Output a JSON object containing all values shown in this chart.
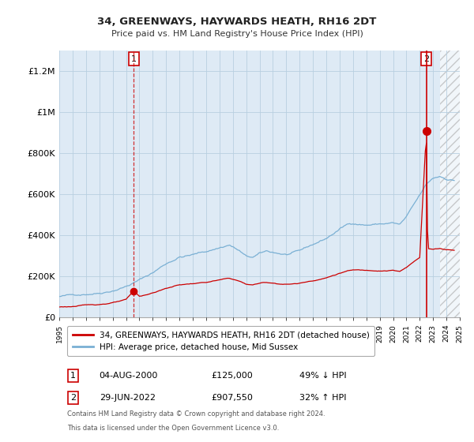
{
  "title": "34, GREENWAYS, HAYWARDS HEATH, RH16 2DT",
  "subtitle": "Price paid vs. HM Land Registry's House Price Index (HPI)",
  "legend_line1": "34, GREENWAYS, HAYWARDS HEATH, RH16 2DT (detached house)",
  "legend_line2": "HPI: Average price, detached house, Mid Sussex",
  "annotation1_label": "1",
  "annotation1_date": "04-AUG-2000",
  "annotation1_price": "£125,000",
  "annotation1_hpi": "49% ↓ HPI",
  "annotation2_label": "2",
  "annotation2_date": "29-JUN-2022",
  "annotation2_price": "£907,550",
  "annotation2_hpi": "32% ↑ HPI",
  "footnote1": "Contains HM Land Registry data © Crown copyright and database right 2024.",
  "footnote2": "This data is licensed under the Open Government Licence v3.0.",
  "price_paid_color": "#cc0000",
  "hpi_color": "#7ab0d4",
  "chart_bg_color": "#deeaf5",
  "background_color": "#ffffff",
  "grid_color": "#b8cfe0",
  "sale1_x": 2000.58,
  "sale1_y": 125000,
  "sale2_x": 2022.49,
  "sale2_y": 907550,
  "ylim": [
    0,
    1300000
  ],
  "xlim": [
    1995,
    2025
  ],
  "yticks": [
    0,
    200000,
    400000,
    600000,
    800000,
    1000000,
    1200000
  ],
  "ytick_labels": [
    "£0",
    "£200K",
    "£400K",
    "£600K",
    "£800K",
    "£1M",
    "£1.2M"
  ],
  "hatch_start": 2023.5,
  "data_end": 2024.5
}
